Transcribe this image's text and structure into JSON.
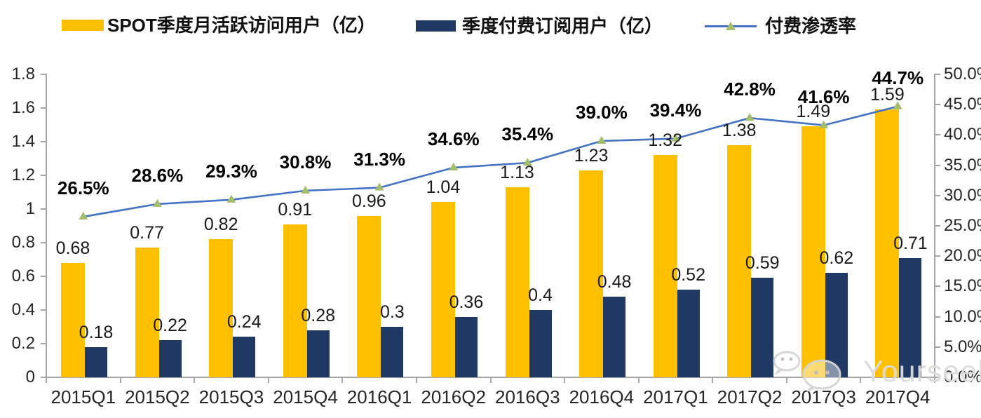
{
  "legend": [
    {
      "label": "SPOT季度月活跃访问用户（亿）",
      "type": "bar",
      "color": "#FFC000"
    },
    {
      "label": "季度付费订阅用户（亿）",
      "type": "bar",
      "color": "#1F3864"
    },
    {
      "label": "付费渗透率",
      "type": "line",
      "color": "#4472C4",
      "marker_color": "#A3BE6A"
    }
  ],
  "colors": {
    "mau_bar": "#FFC000",
    "subs_bar": "#1F3864",
    "line": "#4472C4",
    "marker": "#A3BE6A",
    "axis": "#A6A6A6"
  },
  "watermark": {
    "icon": "wechat-icon",
    "text": "Yourseeker"
  },
  "chart_data": {
    "type": "bar",
    "subtype": "grouped bars + line (dual axis combo)",
    "categories": [
      "2015Q1",
      "2015Q2",
      "2015Q3",
      "2015Q4",
      "2016Q1",
      "2016Q2",
      "2016Q3",
      "2016Q4",
      "2017Q1",
      "2017Q2",
      "2017Q3",
      "2017Q4"
    ],
    "series": [
      {
        "name": "SPOT季度月活跃访问用户（亿）",
        "type": "bar",
        "axis": "left",
        "color": "#FFC000",
        "values": [
          0.68,
          0.77,
          0.82,
          0.91,
          0.96,
          1.04,
          1.13,
          1.23,
          1.32,
          1.38,
          1.49,
          1.59
        ],
        "labels": [
          "0.68",
          "0.77",
          "0.82",
          "0.91",
          "0.96",
          "1.04",
          "1.13",
          "1.23",
          "1.32",
          "1.38",
          "1.49",
          "1.59"
        ]
      },
      {
        "name": "季度付费订阅用户（亿）",
        "type": "bar",
        "axis": "left",
        "color": "#1F3864",
        "values": [
          0.18,
          0.22,
          0.24,
          0.28,
          0.3,
          0.36,
          0.4,
          0.48,
          0.52,
          0.59,
          0.62,
          0.71
        ],
        "labels": [
          "0.18",
          "0.22",
          "0.24",
          "0.28",
          "0.3",
          "0.36",
          "0.4",
          "0.48",
          "0.52",
          "0.59",
          "0.62",
          "0.71"
        ]
      },
      {
        "name": "付费渗透率",
        "type": "line",
        "axis": "right",
        "color": "#4472C4",
        "marker": "triangle",
        "marker_color": "#A3BE6A",
        "values": [
          26.5,
          28.6,
          29.3,
          30.8,
          31.3,
          34.6,
          35.4,
          39.0,
          39.4,
          42.8,
          41.6,
          44.7
        ],
        "labels": [
          "26.5%",
          "28.6%",
          "29.3%",
          "30.8%",
          "31.3%",
          "34.6%",
          "35.4%",
          "39.0%",
          "39.4%",
          "42.8%",
          "41.6%",
          "44.7%"
        ]
      }
    ],
    "left_axis": {
      "min": 0,
      "max": 1.8,
      "tick_step": 0.2,
      "tick_labels": [
        "0",
        "0.2",
        "0.4",
        "0.6",
        "0.8",
        "1",
        "1.2",
        "1.4",
        "1.6",
        "1.8"
      ]
    },
    "right_axis": {
      "min": 0,
      "max": 50,
      "tick_step": 5,
      "tick_labels": [
        "0.0%",
        "5.0%",
        "10.0%",
        "15.0%",
        "20.0%",
        "25.0%",
        "30.0%",
        "35.0%",
        "40.0%",
        "45.0%",
        "50.0%"
      ]
    },
    "grid": false,
    "legend_position": "top"
  }
}
